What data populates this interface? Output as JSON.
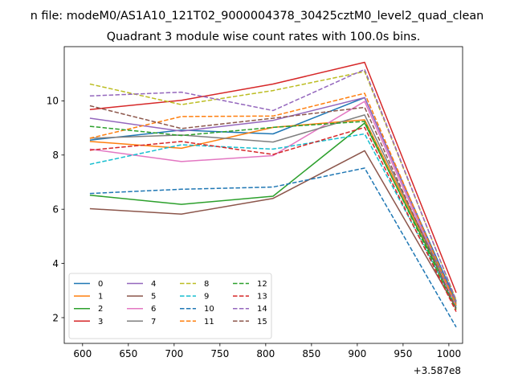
{
  "chart_data": {
    "type": "line",
    "suptitle": "n file: modeM0/AS1A10_121T02_9000004378_30425cztM0_level2_quad_clean",
    "title": "Quadrant 3 module wise count rates with 100.0s bins.",
    "xlabel": "",
    "ylabel": "",
    "offset_label": "+3.587e8",
    "xlim": [
      580,
      1015
    ],
    "ylim": [
      1.05,
      12.0
    ],
    "xticks": [
      600,
      650,
      700,
      750,
      800,
      850,
      900,
      950,
      1000
    ],
    "yticks": [
      2,
      4,
      6,
      8,
      10
    ],
    "x": [
      608,
      708,
      808,
      908,
      1008
    ],
    "legend": {
      "position": "lower-left",
      "columns": 4
    },
    "series": [
      {
        "name": "0",
        "color": "#1f77b4",
        "dash": "solid",
        "values": [
          8.55,
          8.92,
          8.78,
          10.12,
          2.6
        ]
      },
      {
        "name": "1",
        "color": "#ff7f0e",
        "dash": "solid",
        "values": [
          8.5,
          8.25,
          9.02,
          9.3,
          2.55
        ]
      },
      {
        "name": "2",
        "color": "#2ca02c",
        "dash": "solid",
        "values": [
          6.52,
          6.18,
          6.48,
          9.18,
          2.45
        ]
      },
      {
        "name": "3",
        "color": "#d62728",
        "dash": "solid",
        "values": [
          9.68,
          10.02,
          10.62,
          11.42,
          2.92
        ]
      },
      {
        "name": "4",
        "color": "#9467bd",
        "dash": "solid",
        "values": [
          9.36,
          8.88,
          9.28,
          10.12,
          2.5
        ]
      },
      {
        "name": "5",
        "color": "#8c564b",
        "dash": "solid",
        "values": [
          6.02,
          5.82,
          6.4,
          8.16,
          2.35
        ]
      },
      {
        "name": "6",
        "color": "#e377c2",
        "dash": "solid",
        "values": [
          8.22,
          7.76,
          7.98,
          9.98,
          2.4
        ]
      },
      {
        "name": "7",
        "color": "#7f7f7f",
        "dash": "solid",
        "values": [
          8.62,
          8.74,
          8.48,
          9.48,
          2.55
        ]
      },
      {
        "name": "8",
        "color": "#bcbd22",
        "dash": "dashed",
        "values": [
          10.62,
          9.86,
          10.38,
          11.08,
          2.65
        ]
      },
      {
        "name": "9",
        "color": "#17becf",
        "dash": "dashed",
        "values": [
          7.66,
          8.38,
          8.22,
          8.78,
          2.4
        ]
      },
      {
        "name": "10",
        "color": "#1f77b4",
        "dash": "dashed",
        "values": [
          6.58,
          6.74,
          6.82,
          7.52,
          1.65
        ]
      },
      {
        "name": "11",
        "color": "#ff7f0e",
        "dash": "dashed",
        "values": [
          8.62,
          9.42,
          9.44,
          10.28,
          2.45
        ]
      },
      {
        "name": "12",
        "color": "#2ca02c",
        "dash": "dashed",
        "values": [
          9.06,
          8.72,
          9.02,
          9.24,
          2.3
        ]
      },
      {
        "name": "13",
        "color": "#d62728",
        "dash": "dashed",
        "values": [
          8.18,
          8.5,
          8.02,
          9.02,
          2.22
        ]
      },
      {
        "name": "14",
        "color": "#9467bd",
        "dash": "dashed",
        "values": [
          10.18,
          10.32,
          9.64,
          11.16,
          2.62
        ]
      },
      {
        "name": "15",
        "color": "#8c564b",
        "dash": "dashed",
        "values": [
          9.82,
          8.98,
          9.36,
          9.76,
          2.32
        ]
      }
    ]
  }
}
